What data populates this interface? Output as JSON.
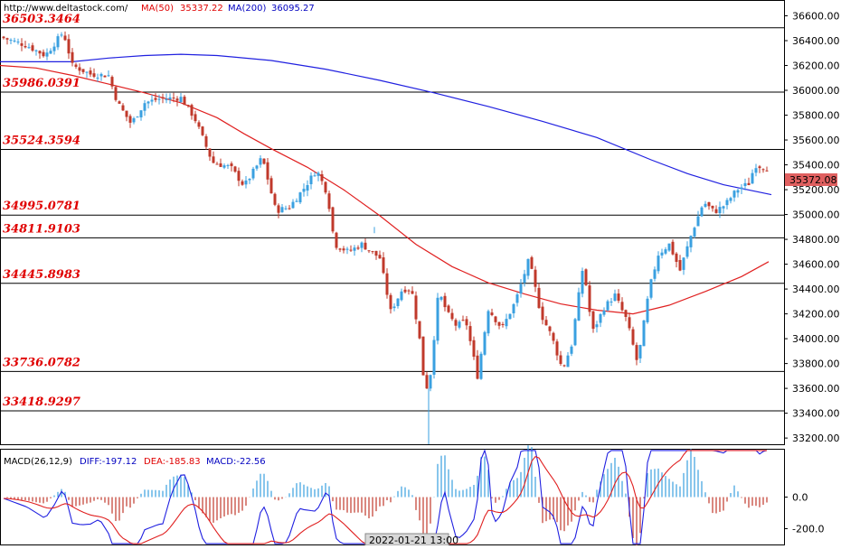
{
  "header": {
    "site": "http://www.deltastock.com/",
    "ma50_label": "MA(50)",
    "ma50_value": "35337.22",
    "ma200_label": "MA(200)",
    "ma200_value": "36095.27"
  },
  "macd_header": {
    "label": "MACD(26,12,9)",
    "diff": "DIFF:-197.12",
    "dea": "DEA:-185.83",
    "macd": "MACD:-22.56"
  },
  "price_tag": "35372.08",
  "time_label": "2022-01-21 13:00",
  "colors": {
    "bull": "#3aa0e0",
    "bear": "#c0392b",
    "ma50": "#e02020",
    "ma200": "#2020e0",
    "level_text": "#e00000",
    "price_tag_bg": "#e06060"
  },
  "chart_data": {
    "type": "candlestick",
    "ylim": [
      33150,
      36720
    ],
    "y_ticks": [
      "36600.00",
      "36400.00",
      "36200.00",
      "36000.00",
      "35800.00",
      "35600.00",
      "35400.00",
      "35200.00",
      "35000.00",
      "34800.00",
      "34600.00",
      "34400.00",
      "34200.00",
      "34000.00",
      "33800.00",
      "33600.00",
      "33400.00",
      "33200.00"
    ],
    "levels": [
      {
        "label": "36503.3464",
        "value": 36503.3464
      },
      {
        "label": "35986.0391",
        "value": 35986.0391
      },
      {
        "label": "35524.3594",
        "value": 35524.3594
      },
      {
        "label": "34995.0781",
        "value": 34995.0781
      },
      {
        "label": "34811.9103",
        "value": 34811.9103
      },
      {
        "label": "34445.8983",
        "value": 34445.8983
      },
      {
        "label": "33736.0782",
        "value": 33736.0782
      },
      {
        "label": "33418.9297",
        "value": 33418.9297
      }
    ],
    "ma50": [
      [
        0,
        36200
      ],
      [
        40,
        36180
      ],
      [
        80,
        36120
      ],
      [
        120,
        36050
      ],
      [
        160,
        35980
      ],
      [
        200,
        35900
      ],
      [
        240,
        35780
      ],
      [
        270,
        35650
      ],
      [
        300,
        35530
      ],
      [
        340,
        35380
      ],
      [
        380,
        35200
      ],
      [
        420,
        34990
      ],
      [
        460,
        34760
      ],
      [
        500,
        34580
      ],
      [
        540,
        34450
      ],
      [
        580,
        34360
      ],
      [
        620,
        34280
      ],
      [
        660,
        34230
      ],
      [
        700,
        34200
      ],
      [
        740,
        34270
      ],
      [
        780,
        34380
      ],
      [
        820,
        34500
      ],
      [
        850,
        34620
      ]
    ],
    "ma200": [
      [
        0,
        36230
      ],
      [
        40,
        36230
      ],
      [
        80,
        36230
      ],
      [
        120,
        36260
      ],
      [
        160,
        36280
      ],
      [
        200,
        36290
      ],
      [
        240,
        36280
      ],
      [
        300,
        36240
      ],
      [
        360,
        36170
      ],
      [
        420,
        36080
      ],
      [
        480,
        35980
      ],
      [
        540,
        35870
      ],
      [
        600,
        35750
      ],
      [
        660,
        35620
      ],
      [
        720,
        35440
      ],
      [
        760,
        35330
      ],
      [
        800,
        35240
      ],
      [
        853,
        35160
      ]
    ],
    "macd": {
      "ylim": [
        -300,
        300
      ],
      "ticks": [
        "0.0",
        "-200.0"
      ]
    }
  }
}
